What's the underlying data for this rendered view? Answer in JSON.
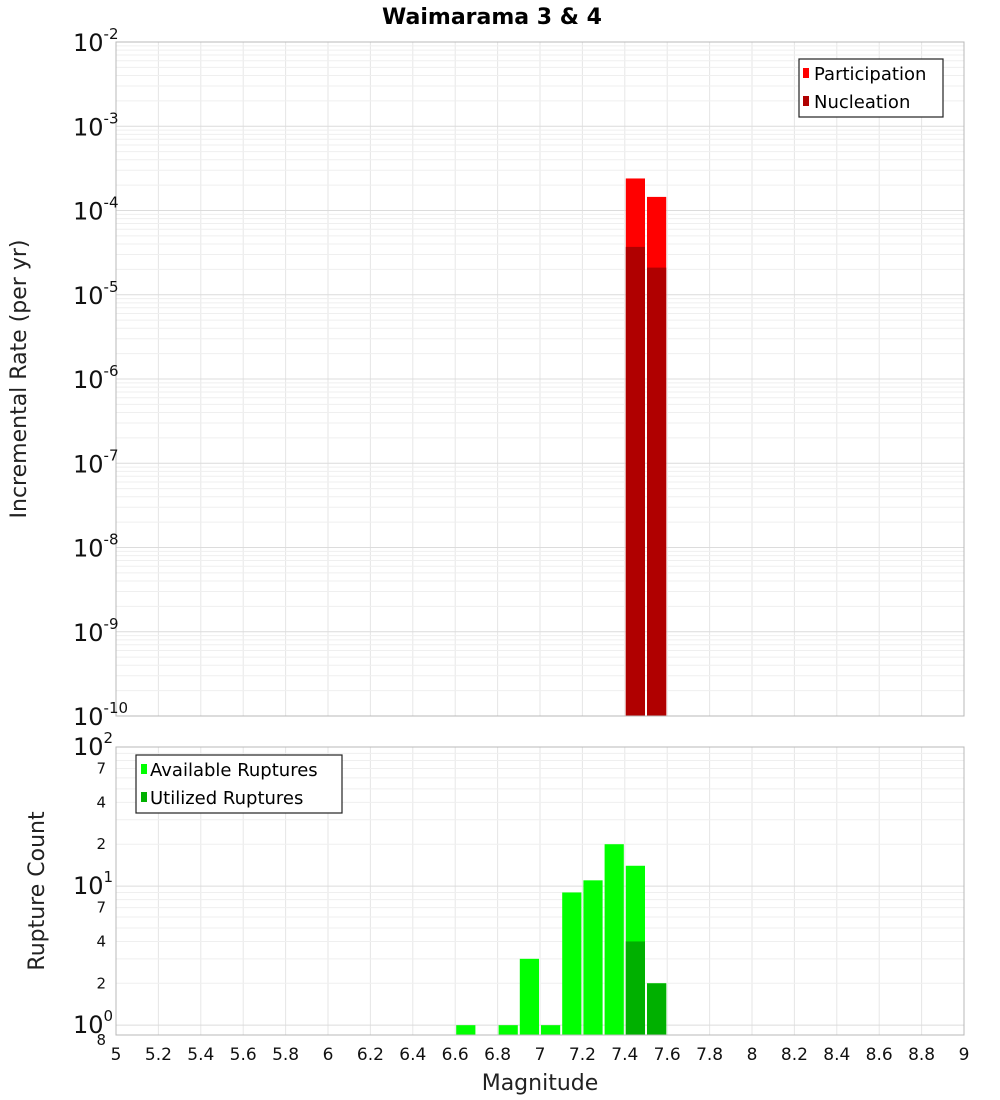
{
  "chart_data": [
    {
      "type": "bar",
      "title": "Waimarama 3 & 4",
      "ylabel": "Incremental Rate (per yr)",
      "xlabel": "",
      "yscale": "log",
      "xlim": [
        5,
        9
      ],
      "ylim": [
        1e-10,
        0.01
      ],
      "y_tick_exponents": [
        -10,
        -9,
        -8,
        -7,
        -6,
        -5,
        -4,
        -3,
        -2
      ],
      "y_tick_base": "10",
      "bin_width": 0.1,
      "legend_position": "top-right",
      "series": [
        {
          "name": "Participation",
          "color": "#ff0000",
          "x": [
            7.45,
            7.55
          ],
          "values": [
            0.00024,
            0.000145
          ]
        },
        {
          "name": "Nucleation",
          "color": "#b00000",
          "x": [
            7.45,
            7.55
          ],
          "values": [
            3.7e-05,
            2.1e-05
          ]
        }
      ]
    },
    {
      "type": "bar",
      "title": "",
      "ylabel": "Rupture Count",
      "xlabel": "Magnitude",
      "yscale": "log",
      "xlim": [
        5,
        9
      ],
      "ylim": [
        0.85,
        100
      ],
      "x_ticks": [
        "5",
        "5.2",
        "5.4",
        "5.6",
        "5.8",
        "6",
        "6.2",
        "6.4",
        "6.6",
        "6.8",
        "7",
        "7.2",
        "7.4",
        "7.6",
        "7.8",
        "8",
        "8.2",
        "8.4",
        "8.6",
        "8.8",
        "9"
      ],
      "y_major_ticks": [
        {
          "value": 1,
          "base": "10",
          "exp": "0",
          "minor": "8"
        },
        {
          "value": 10,
          "base": "10",
          "exp": "1"
        },
        {
          "value": 100,
          "base": "10",
          "exp": "2"
        }
      ],
      "y_minor_ticks": [
        {
          "value": 2,
          "label": "2"
        },
        {
          "value": 4,
          "label": "4"
        },
        {
          "value": 7,
          "label": "7"
        },
        {
          "value": 20,
          "label": "2"
        },
        {
          "value": 40,
          "label": "4"
        },
        {
          "value": 70,
          "label": "7"
        }
      ],
      "bin_width": 0.1,
      "legend_position": "top-left",
      "series": [
        {
          "name": "Available Ruptures",
          "color": "#00ff00",
          "x": [
            6.65,
            6.85,
            6.95,
            7.05,
            7.15,
            7.25,
            7.35,
            7.45,
            7.55
          ],
          "values": [
            1,
            1,
            3,
            1,
            9,
            11,
            20,
            14,
            2
          ]
        },
        {
          "name": "Utilized Ruptures",
          "color": "#00b000",
          "x": [
            7.45,
            7.55
          ],
          "values": [
            4,
            2
          ]
        }
      ]
    }
  ]
}
